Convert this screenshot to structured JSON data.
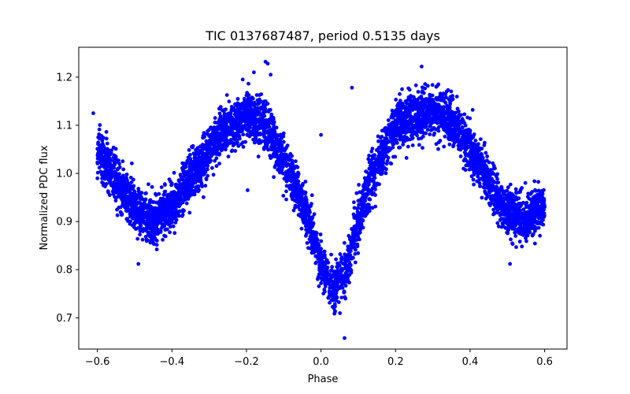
{
  "chart_data": {
    "type": "scatter",
    "title": "TIC 0137687487, period 0.5135 days",
    "xlabel": "Phase",
    "ylabel": "Normalized PDC flux",
    "xlim": [
      -0.65,
      0.66
    ],
    "ylim": [
      0.635,
      1.262
    ],
    "xticks": [
      -0.6,
      -0.4,
      -0.2,
      0.0,
      0.2,
      0.4,
      0.6
    ],
    "xtick_labels": [
      "−0.6",
      "−0.4",
      "−0.2",
      "0.0",
      "0.2",
      "0.4",
      "0.6"
    ],
    "yticks": [
      0.7,
      0.8,
      0.9,
      1.0,
      1.1,
      1.2
    ],
    "ytick_labels": [
      "0.7",
      "0.8",
      "0.9",
      "1.0",
      "1.1",
      "1.2"
    ],
    "grid": false,
    "marker_color": "#0000ff",
    "series": [
      {
        "name": "",
        "trend": {
          "x": [
            -0.6,
            -0.55,
            -0.5,
            -0.45,
            -0.4,
            -0.35,
            -0.3,
            -0.25,
            -0.2,
            -0.15,
            -0.1,
            -0.05,
            0.0,
            0.03,
            0.06,
            0.1,
            0.15,
            0.2,
            0.25,
            0.3,
            0.35,
            0.4,
            0.45,
            0.5,
            0.55,
            0.6
          ],
          "y": [
            1.05,
            0.99,
            0.93,
            0.9,
            0.93,
            0.99,
            1.05,
            1.1,
            1.12,
            1.1,
            1.03,
            0.94,
            0.82,
            0.76,
            0.78,
            0.9,
            1.02,
            1.1,
            1.12,
            1.13,
            1.11,
            1.05,
            0.98,
            0.92,
            0.9,
            0.94
          ]
        },
        "outliers": [
          {
            "x": -0.149,
            "y": 1.232
          },
          {
            "x": -0.143,
            "y": 1.228
          },
          {
            "x": -0.21,
            "y": 1.195
          },
          {
            "x": -0.135,
            "y": 1.205
          },
          {
            "x": -0.18,
            "y": 1.21
          },
          {
            "x": 0.083,
            "y": 1.178
          },
          {
            "x": 0.27,
            "y": 1.222
          },
          {
            "x": 0.315,
            "y": 1.185
          },
          {
            "x": 0.063,
            "y": 0.658
          },
          {
            "x": -0.49,
            "y": 0.812
          },
          {
            "x": 0.507,
            "y": 0.812
          },
          {
            "x": -0.197,
            "y": 0.965
          },
          {
            "x": -0.611,
            "y": 1.125
          },
          {
            "x": 0.0,
            "y": 1.08
          },
          {
            "x": -0.353,
            "y": 0.955
          }
        ]
      }
    ]
  }
}
